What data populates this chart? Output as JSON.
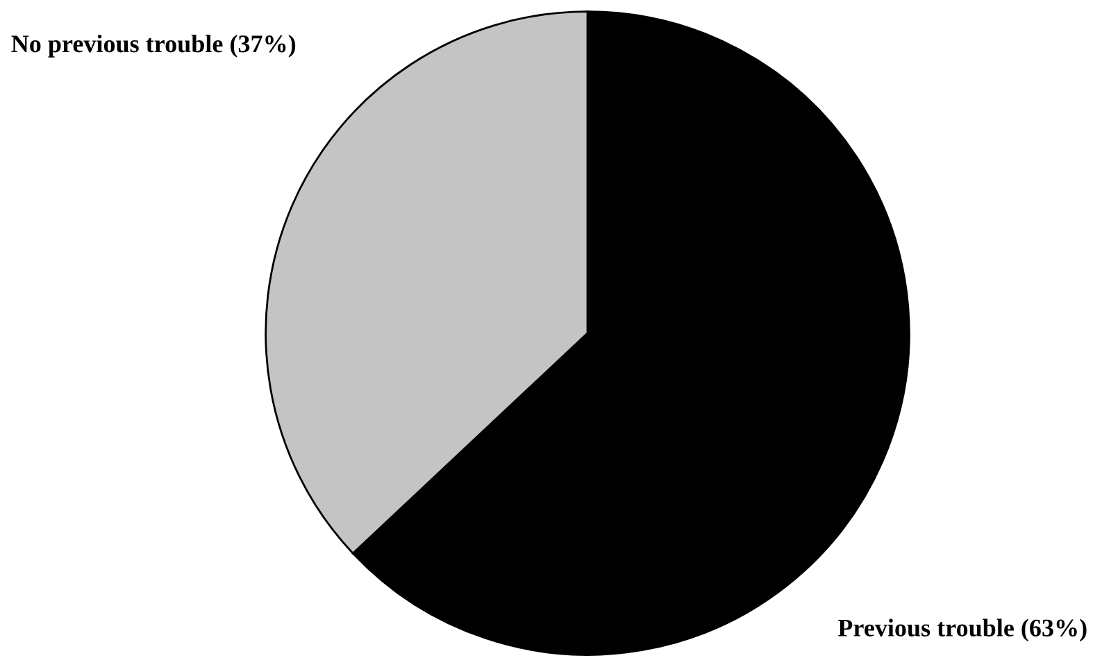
{
  "chart_data": {
    "type": "pie",
    "categories": [
      "Previous trouble (63%)",
      "No previous trouble (37%)"
    ],
    "values": [
      63,
      37
    ],
    "colors": [
      "#000000",
      "#c4c4c4"
    ]
  }
}
